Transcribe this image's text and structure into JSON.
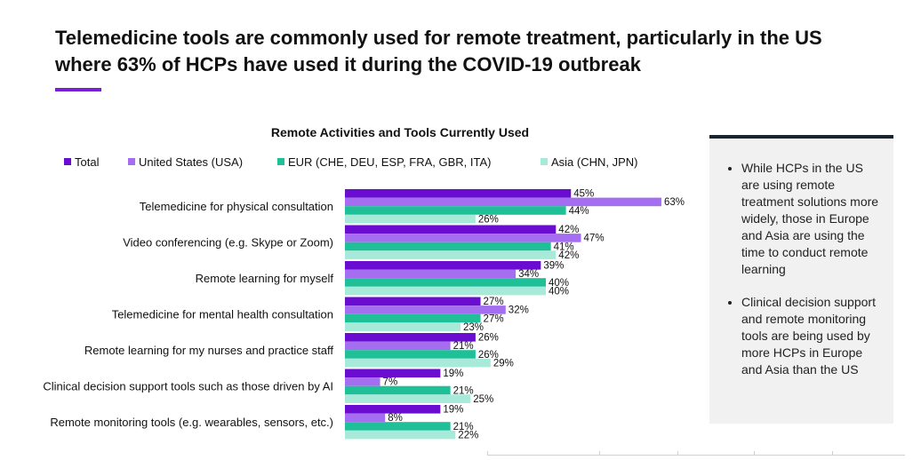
{
  "headline": "Telemedicine tools are commonly used for remote treatment, particularly in the US where 63% of HCPs have used it during the COVID-19 outbreak",
  "colors": {
    "accent": "#7a1fd6",
    "total": "#6a0dd0",
    "usa": "#a56ef0",
    "eur": "#1fbf98",
    "asia": "#a8ead9",
    "panel_border": "#1b2330"
  },
  "panel": {
    "bullets": [
      "While HCPs in the US are using remote treatment solutions more widely, those in Europe and Asia are using the time to conduct remote learning",
      "Clinical decision support and remote monitoring tools are being used by more HCPs in Europe and Asia than the US"
    ]
  },
  "chart_data": {
    "type": "bar",
    "orientation": "horizontal",
    "title": "Remote Activities and Tools Currently Used",
    "xlabel": "",
    "ylabel": "",
    "xlim": [
      0,
      100
    ],
    "legend_position": "top",
    "value_suffix": "%",
    "categories": [
      "Telemedicine for physical consultation",
      "Video conferencing (e.g. Skype or Zoom)",
      "Remote learning for myself",
      "Telemedicine for mental health consultation",
      "Remote learning for my nurses and practice staff",
      "Clinical decision support tools such as those driven by AI",
      "Remote monitoring tools (e.g. wearables, sensors, etc.)"
    ],
    "series": [
      {
        "name": "Total",
        "color": "#6a0dd0",
        "values": [
          45,
          42,
          39,
          27,
          26,
          19,
          19
        ]
      },
      {
        "name": "United States (USA)",
        "color": "#a56ef0",
        "values": [
          63,
          47,
          34,
          32,
          21,
          7,
          8
        ]
      },
      {
        "name": "EUR (CHE, DEU, ESP, FRA, GBR, ITA)",
        "color": "#1fbf98",
        "values": [
          44,
          41,
          40,
          27,
          26,
          21,
          21
        ]
      },
      {
        "name": "Asia (CHN, JPN)",
        "color": "#a8ead9",
        "values": [
          26,
          42,
          40,
          23,
          29,
          25,
          22
        ]
      }
    ]
  }
}
